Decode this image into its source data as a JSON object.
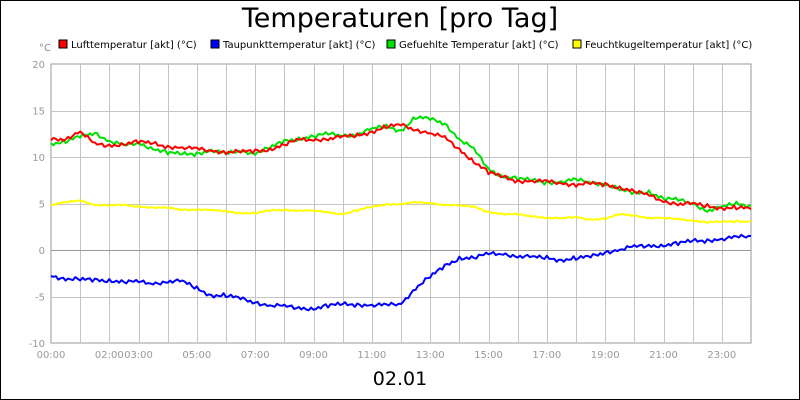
{
  "title": "Temperaturen [pro Tag]",
  "footer": "02.01",
  "unit": "°C",
  "chart_data": {
    "type": "line",
    "title": "Temperaturen [pro Tag]",
    "ylabel": "°C",
    "xlabel": "02.01",
    "ylim": [
      -10,
      20
    ],
    "xlim": [
      0,
      24
    ],
    "grid": true,
    "legend_position": "top",
    "y_ticks": [
      -10,
      -5,
      0,
      5,
      10,
      15,
      20
    ],
    "y_tick_labels": [
      "-10",
      "-5",
      "0",
      "5",
      "10",
      "15",
      "20"
    ],
    "x_ticks": [
      0,
      2,
      3,
      5,
      7,
      9,
      11,
      13,
      15,
      17,
      19,
      21,
      23
    ],
    "x_tick_labels": [
      "00:00",
      "02:00",
      "03:00",
      "05:00",
      "07:00",
      "09:00",
      "11:00",
      "13:00",
      "15:00",
      "17:00",
      "19:00",
      "21:00",
      "23:00"
    ],
    "x_hours": [
      0,
      0.5,
      1,
      1.5,
      2,
      2.5,
      3,
      3.5,
      4,
      4.5,
      5,
      5.5,
      6,
      6.5,
      7,
      7.5,
      8,
      8.5,
      9,
      9.5,
      10,
      10.5,
      11,
      11.5,
      12,
      12.5,
      13,
      13.5,
      14,
      14.5,
      15,
      15.5,
      16,
      16.5,
      17,
      17.5,
      18,
      18.5,
      19,
      19.5,
      20,
      20.5,
      21,
      21.5,
      22,
      22.5,
      23,
      23.5,
      24
    ],
    "series": [
      {
        "name": "Lufttemperatur [akt] (°C)",
        "color": "#ff0000",
        "values": [
          11.8,
          12.0,
          12.8,
          11.3,
          11.2,
          11.5,
          11.6,
          11.4,
          11.2,
          11.0,
          10.8,
          10.7,
          10.6,
          10.5,
          10.6,
          10.9,
          11.3,
          11.8,
          11.9,
          12.0,
          12.1,
          12.3,
          12.8,
          13.2,
          13.4,
          13.0,
          12.6,
          12.0,
          10.8,
          9.6,
          8.3,
          7.8,
          7.5,
          7.4,
          7.3,
          7.2,
          7.1,
          7.1,
          7.0,
          6.8,
          6.3,
          5.8,
          5.3,
          5.0,
          4.9,
          4.7,
          4.6,
          4.5,
          4.4
        ]
      },
      {
        "name": "Taupunkttemperatur [akt] (°C)",
        "color": "#0000ff",
        "values": [
          -2.8,
          -3.0,
          -3.2,
          -3.3,
          -3.2,
          -3.4,
          -3.5,
          -3.6,
          -3.3,
          -3.4,
          -4.2,
          -4.8,
          -4.9,
          -5.3,
          -5.6,
          -5.9,
          -6.1,
          -6.3,
          -6.2,
          -6.0,
          -5.9,
          -5.8,
          -5.9,
          -6.0,
          -5.8,
          -4.0,
          -2.9,
          -1.8,
          -0.8,
          -0.8,
          -0.5,
          -0.4,
          -0.6,
          -0.8,
          -0.9,
          -1.0,
          -0.9,
          -0.8,
          -0.2,
          0.1,
          0.3,
          0.4,
          0.6,
          0.7,
          0.9,
          1.1,
          1.2,
          1.3,
          1.5
        ]
      },
      {
        "name": "Gefuehlte Temperatur [akt] (°C)",
        "color": "#00e000",
        "values": [
          11.5,
          11.7,
          12.1,
          12.6,
          11.8,
          11.2,
          11.4,
          11.0,
          10.5,
          10.2,
          10.4,
          10.8,
          10.3,
          10.6,
          10.5,
          11.0,
          11.6,
          12.0,
          12.3,
          12.4,
          12.3,
          12.5,
          13.0,
          13.2,
          12.9,
          14.3,
          14.0,
          13.6,
          12.0,
          10.8,
          8.6,
          8.0,
          7.7,
          7.4,
          7.3,
          7.4,
          7.5,
          7.2,
          7.2,
          6.5,
          6.0,
          6.3,
          5.6,
          5.3,
          5.0,
          4.3,
          4.6,
          4.9,
          4.8
        ]
      },
      {
        "name": "Feuchtkugeltemperatur [akt] (°C)",
        "color": "#ffff00",
        "values": [
          4.9,
          5.1,
          5.3,
          4.9,
          4.8,
          4.8,
          4.7,
          4.6,
          4.5,
          4.3,
          4.4,
          4.3,
          4.1,
          4.0,
          4.0,
          4.2,
          4.3,
          4.3,
          4.2,
          4.0,
          3.9,
          4.3,
          4.6,
          4.9,
          5.0,
          5.1,
          5.0,
          4.9,
          4.8,
          4.6,
          4.1,
          3.9,
          3.8,
          3.6,
          3.5,
          3.4,
          3.5,
          3.3,
          3.4,
          3.8,
          3.7,
          3.5,
          3.4,
          3.3,
          3.2,
          3.0,
          3.0,
          3.1,
          3.1
        ]
      }
    ]
  }
}
